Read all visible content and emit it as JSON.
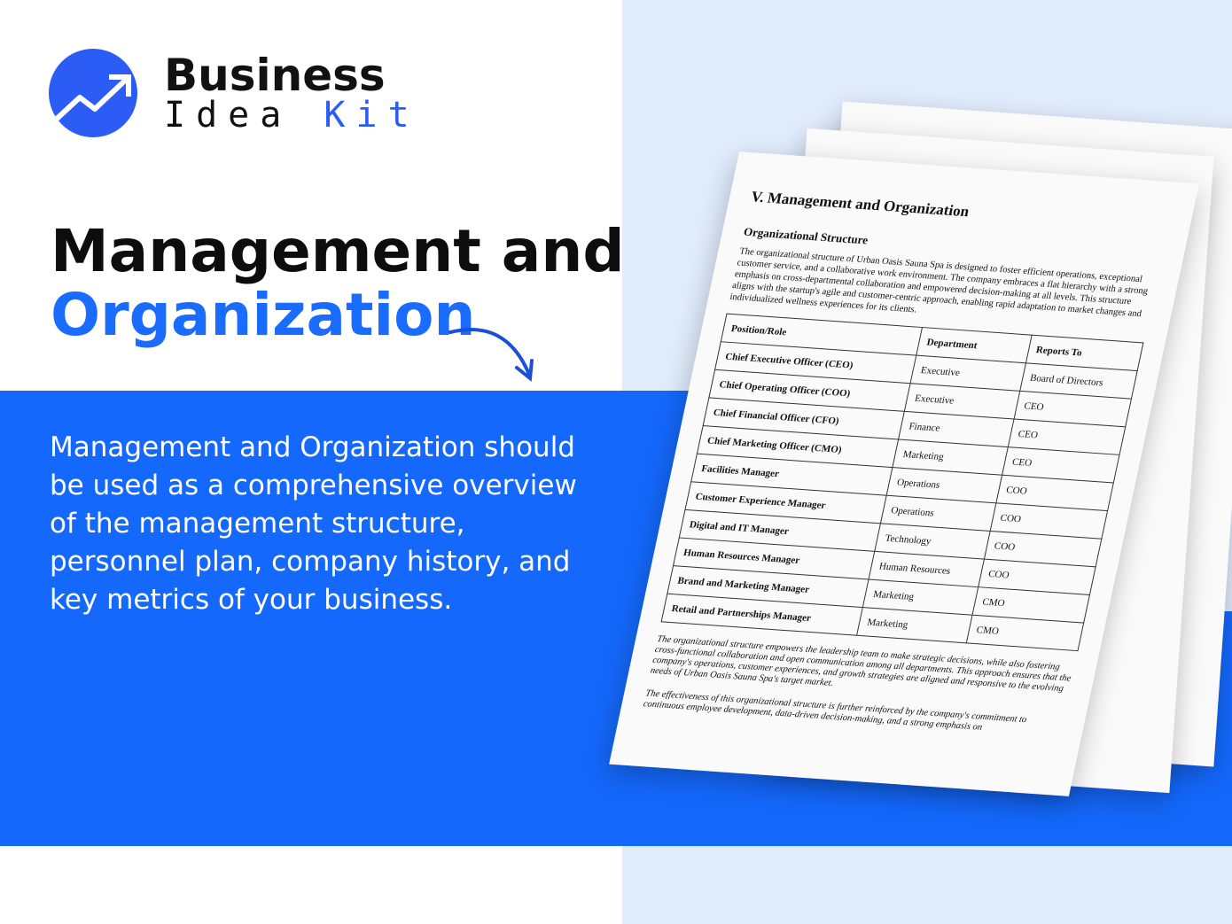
{
  "brand": {
    "line1": "Business",
    "line2a": "Idea",
    "line2b": "Kit",
    "accent": "#2c5cf6"
  },
  "headline": {
    "line1": "Management and",
    "line2": "Organization"
  },
  "description": "Management and Organization should be used as a comprehensive overview of the management structure, personnel plan, company history, and key metrics of your business.",
  "document": {
    "title": "V. Management and Organization",
    "subtitle": "Organizational Structure",
    "intro": "The organizational structure of Urban Oasis Sauna Spa is designed to foster efficient operations, exceptional customer service, and a collaborative work environment. The company embraces a flat hierarchy with a strong emphasis on cross-departmental collaboration and empowered decision-making at all levels. This structure aligns with the startup's agile and customer-centric approach, enabling rapid adaptation to market changes and individualized wellness experiences for its clients.",
    "table": {
      "headers": [
        "Position/Role",
        "Department",
        "Reports To"
      ],
      "rows": [
        [
          "Chief Executive Officer (CEO)",
          "Executive",
          "Board of Directors"
        ],
        [
          "Chief Operating Officer (COO)",
          "Executive",
          "CEO"
        ],
        [
          "Chief Financial Officer (CFO)",
          "Finance",
          "CEO"
        ],
        [
          "Chief Marketing Officer (CMO)",
          "Marketing",
          "CEO"
        ],
        [
          "Facilities Manager",
          "Operations",
          "COO"
        ],
        [
          "Customer Experience Manager",
          "Operations",
          "COO"
        ],
        [
          "Digital and IT Manager",
          "Technology",
          "COO"
        ],
        [
          "Human Resources Manager",
          "Human Resources",
          "COO"
        ],
        [
          "Brand and Marketing Manager",
          "Marketing",
          "CMO"
        ],
        [
          "Retail and Partnerships Manager",
          "Marketing",
          "CMO"
        ]
      ]
    },
    "footer1": "The organizational structure empowers the leadership team to make strategic decisions, while also fostering cross-functional collaboration and open communication among all departments. This approach ensures that the company's operations, customer experiences, and growth strategies are aligned and responsive to the evolving needs of Urban Oasis Sauna Spa's target market.",
    "footer2": "The effectiveness of this organizational structure is further reinforced by the company's commitment to continuous employee development, data-driven decision-making, and a strong emphasis on"
  }
}
